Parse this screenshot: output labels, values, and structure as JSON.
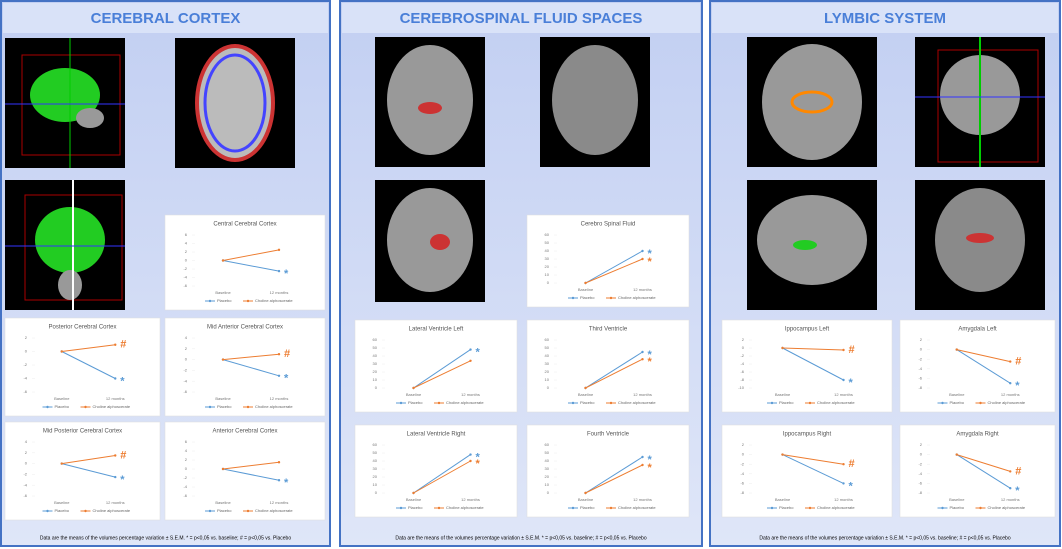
{
  "panels": [
    {
      "title": "CEREBRAL CORTEX",
      "footnote": "Data are the means  of the volumes  percentage  variation  ± S.E.M. * = p<0,05 vs. baseline;  # = p<0,05 vs. Placebo"
    },
    {
      "title": "CEREBROSPINAL FLUID SPACES",
      "footnote": "Data are the means  of the volumes  percentage  variation  ± S.E.M. * = p<0,05 vs. baseline;  # = p<0,05 vs. Placebo"
    },
    {
      "title": "LYMBIC SYSTEM",
      "footnote": "Data are the means  of the volumes  percentage  variation  ± S.E.M. * = p<0,05 vs. baseline;  # = p<0,05 vs. Placebo"
    }
  ],
  "chart_data": [
    {
      "type": "line",
      "title": "Central Cerebral Cortex",
      "categories": [
        "Baseline",
        "12 months"
      ],
      "ylim": [
        -6,
        6
      ],
      "yticks": [
        -6,
        -4,
        -2,
        0,
        2,
        4,
        6
      ],
      "series": [
        {
          "name": "Placebo",
          "color": "#5b9bd5",
          "values": [
            0,
            -2.5
          ],
          "annotation": "*"
        },
        {
          "name": "Choline alphoscerate",
          "color": "#ed7d31",
          "values": [
            0,
            2.5
          ]
        }
      ]
    },
    {
      "type": "line",
      "title": "Posterior Cerebral Cortex",
      "categories": [
        "Baseline",
        "12 months"
      ],
      "ylim": [
        -6,
        2
      ],
      "yticks": [
        -6,
        -4,
        -2,
        0,
        2
      ],
      "series": [
        {
          "name": "Placebo",
          "color": "#5b9bd5",
          "values": [
            0,
            -4
          ],
          "annotation": "*"
        },
        {
          "name": "Choline alphoscerate",
          "color": "#ed7d31",
          "values": [
            0,
            1
          ],
          "annotation": "#"
        }
      ]
    },
    {
      "type": "line",
      "title": "Mid Anterior Cerebral Cortex",
      "categories": [
        "Baseline",
        "12 months"
      ],
      "ylim": [
        -6,
        4
      ],
      "yticks": [
        -6,
        -4,
        -2,
        0,
        2,
        4
      ],
      "series": [
        {
          "name": "Placebo",
          "color": "#5b9bd5",
          "values": [
            0,
            -3
          ],
          "annotation": "*"
        },
        {
          "name": "Choline alphoscerate",
          "color": "#ed7d31",
          "values": [
            0,
            1
          ],
          "annotation": "#"
        }
      ]
    },
    {
      "type": "line",
      "title": "Mid Posterior Cerebral Cortex",
      "categories": [
        "Baseline",
        "12 months"
      ],
      "ylim": [
        -6,
        4
      ],
      "yticks": [
        -6,
        -4,
        -2,
        0,
        2,
        4
      ],
      "series": [
        {
          "name": "Placebo",
          "color": "#5b9bd5",
          "values": [
            0,
            -2.5
          ],
          "annotation": "*"
        },
        {
          "name": "Choline alphoscerate",
          "color": "#ed7d31",
          "values": [
            0,
            1.5
          ],
          "annotation": "#"
        }
      ]
    },
    {
      "type": "line",
      "title": "Anterior Cerebral Cortex",
      "categories": [
        "Baseline",
        "12 months"
      ],
      "ylim": [
        -6,
        6
      ],
      "yticks": [
        -6,
        -4,
        -2,
        0,
        2,
        4,
        6
      ],
      "series": [
        {
          "name": "Placebo",
          "color": "#5b9bd5",
          "values": [
            0,
            -2.5
          ],
          "annotation": "*"
        },
        {
          "name": "Choline alphoscerate",
          "color": "#ed7d31",
          "values": [
            0,
            1.5
          ]
        }
      ]
    },
    {
      "type": "line",
      "title": "Cerebro Spinal Fluid",
      "categories": [
        "Baseline",
        "12 months"
      ],
      "ylim": [
        0,
        60
      ],
      "yticks": [
        0,
        10,
        20,
        30,
        40,
        50,
        60
      ],
      "series": [
        {
          "name": "Placebo",
          "color": "#5b9bd5",
          "values": [
            0,
            40
          ],
          "annotation": "*"
        },
        {
          "name": "Choline alphoscerate",
          "color": "#ed7d31",
          "values": [
            0,
            30
          ],
          "annotation": "*"
        }
      ]
    },
    {
      "type": "line",
      "title": "Lateral Ventricle Left",
      "categories": [
        "Baseline",
        "12 months"
      ],
      "ylim": [
        0,
        60
      ],
      "yticks": [
        0,
        10,
        20,
        30,
        40,
        50,
        60
      ],
      "series": [
        {
          "name": "Placebo",
          "color": "#5b9bd5",
          "values": [
            0,
            48
          ],
          "annotation": "*"
        },
        {
          "name": "Choline alphoscerate",
          "color": "#ed7d31",
          "values": [
            0,
            34
          ]
        }
      ]
    },
    {
      "type": "line",
      "title": "Third Ventricle",
      "categories": [
        "Baseline",
        "12 months"
      ],
      "ylim": [
        0,
        60
      ],
      "yticks": [
        0,
        10,
        20,
        30,
        40,
        50,
        60
      ],
      "series": [
        {
          "name": "Placebo",
          "color": "#5b9bd5",
          "values": [
            0,
            45
          ],
          "annotation": "*"
        },
        {
          "name": "Choline alphoscerate",
          "color": "#ed7d31",
          "values": [
            0,
            36
          ],
          "annotation": "*"
        }
      ]
    },
    {
      "type": "line",
      "title": "Lateral Ventricle Right",
      "categories": [
        "Baseline",
        "12 months"
      ],
      "ylim": [
        0,
        60
      ],
      "yticks": [
        0,
        10,
        20,
        30,
        40,
        50,
        60
      ],
      "series": [
        {
          "name": "Placebo",
          "color": "#5b9bd5",
          "values": [
            0,
            48
          ],
          "annotation": "*"
        },
        {
          "name": "Choline alphoscerate",
          "color": "#ed7d31",
          "values": [
            0,
            40
          ],
          "annotation": "*"
        }
      ]
    },
    {
      "type": "line",
      "title": "Fourth Ventricle",
      "categories": [
        "Baseline",
        "12 months"
      ],
      "ylim": [
        0,
        60
      ],
      "yticks": [
        0,
        10,
        20,
        30,
        40,
        50,
        60
      ],
      "series": [
        {
          "name": "Placebo",
          "color": "#5b9bd5",
          "values": [
            0,
            45
          ],
          "annotation": "*"
        },
        {
          "name": "Choline alphoscerate",
          "color": "#ed7d31",
          "values": [
            0,
            35
          ],
          "annotation": "*"
        }
      ]
    },
    {
      "type": "line",
      "title": "Ippocampus Left",
      "categories": [
        "Baseline",
        "12 months"
      ],
      "ylim": [
        -10,
        2
      ],
      "yticks": [
        -10,
        -8,
        -6,
        -4,
        -2,
        0,
        2
      ],
      "series": [
        {
          "name": "Placebo",
          "color": "#5b9bd5",
          "values": [
            0,
            -8
          ],
          "annotation": "*"
        },
        {
          "name": "Choline alphoscerate",
          "color": "#ed7d31",
          "values": [
            0,
            -0.5
          ],
          "annotation": "#"
        }
      ]
    },
    {
      "type": "line",
      "title": "Amygdala Left",
      "categories": [
        "Baseline",
        "12 months"
      ],
      "ylim": [
        -8,
        2
      ],
      "yticks": [
        -8,
        -6,
        -4,
        -2,
        0,
        2
      ],
      "series": [
        {
          "name": "Placebo",
          "color": "#5b9bd5",
          "values": [
            0,
            -7
          ],
          "annotation": "*"
        },
        {
          "name": "Choline alphoscerate",
          "color": "#ed7d31",
          "values": [
            0,
            -2.5
          ],
          "annotation": "#"
        }
      ]
    },
    {
      "type": "line",
      "title": "Ippocampus Right",
      "categories": [
        "Baseline",
        "12 months"
      ],
      "ylim": [
        -8,
        2
      ],
      "yticks": [
        -8,
        -6,
        -4,
        -2,
        0,
        2
      ],
      "series": [
        {
          "name": "Placebo",
          "color": "#5b9bd5",
          "values": [
            0,
            -6
          ],
          "annotation": "*"
        },
        {
          "name": "Choline alphoscerate",
          "color": "#ed7d31",
          "values": [
            0,
            -2
          ],
          "annotation": "#"
        }
      ]
    },
    {
      "type": "line",
      "title": "Amygdala Right",
      "categories": [
        "Baseline",
        "12 months"
      ],
      "ylim": [
        -8,
        2
      ],
      "yticks": [
        -8,
        -6,
        -4,
        -2,
        0,
        2
      ],
      "series": [
        {
          "name": "Placebo",
          "color": "#5b9bd5",
          "values": [
            0,
            -7
          ],
          "annotation": "*"
        },
        {
          "name": "Choline alphoscerate",
          "color": "#ed7d31",
          "values": [
            0,
            -3.5
          ],
          "annotation": "#"
        }
      ]
    }
  ]
}
